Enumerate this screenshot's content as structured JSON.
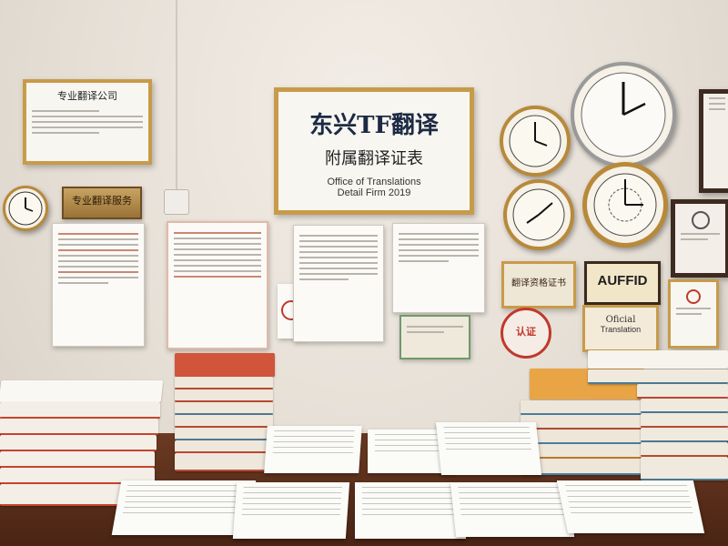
{
  "main_sign": {
    "heading": "东兴TF翻译",
    "subheading": "附属翻译证表",
    "line1": "Office of Translations",
    "line2": "Detail Firm 2019"
  },
  "top_left_frame_title": "专业翻译公司",
  "plaque_label": "专业翻译服务",
  "small_cert_label": "翻译资格证书",
  "stamp_text": "AUFFID",
  "right_cert_label": "Oficial",
  "right_cert_sub": "Translation",
  "seal_label": "认证",
  "colors": {
    "gold_frame": "#c89b4a",
    "dark_frame": "#3d2b22",
    "wall": "#e6dfd6",
    "table": "#5a2d19",
    "seal_red": "#c0392b"
  }
}
